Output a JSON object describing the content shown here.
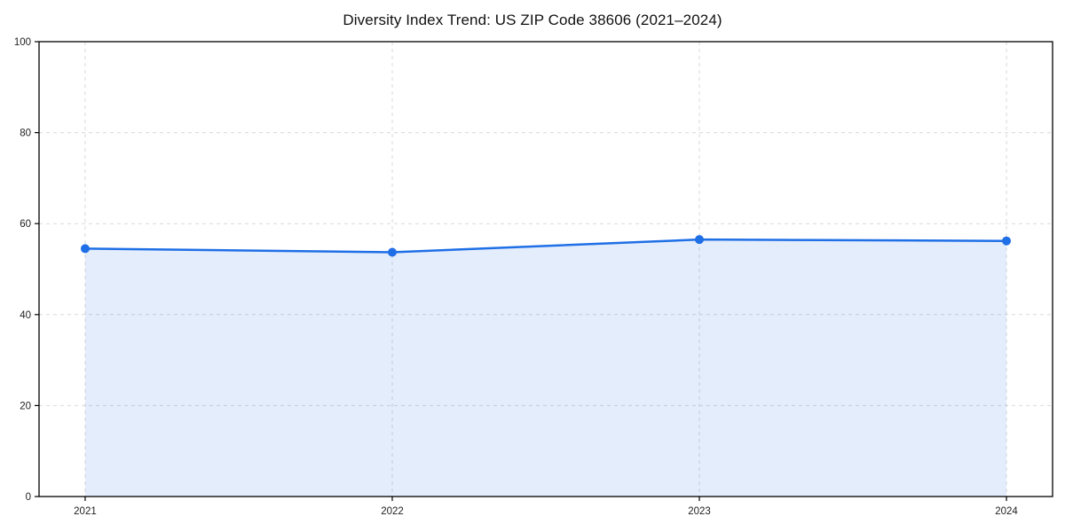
{
  "chart_data": {
    "type": "area",
    "title": "Diversity Index Trend: US ZIP Code 38606 (2021–2024)",
    "categories": [
      "2021",
      "2022",
      "2023",
      "2024"
    ],
    "series": [
      {
        "name": "Diversity Index",
        "values": [
          54.5,
          53.7,
          56.5,
          56.2
        ]
      }
    ],
    "xlabel": "",
    "ylabel": "",
    "ylim": [
      0,
      100
    ],
    "yticks": [
      0,
      20,
      40,
      60,
      80,
      100
    ],
    "grid": true,
    "grid_style": "dashed",
    "legend_position": "none",
    "colors": {
      "line": "#1f6fe6",
      "marker": "#1f6fe6",
      "fill": "rgba(31, 111, 230, 0.12)",
      "grid": "#d9d9d9",
      "spine": "#000000",
      "tick_label": "#222222"
    }
  }
}
